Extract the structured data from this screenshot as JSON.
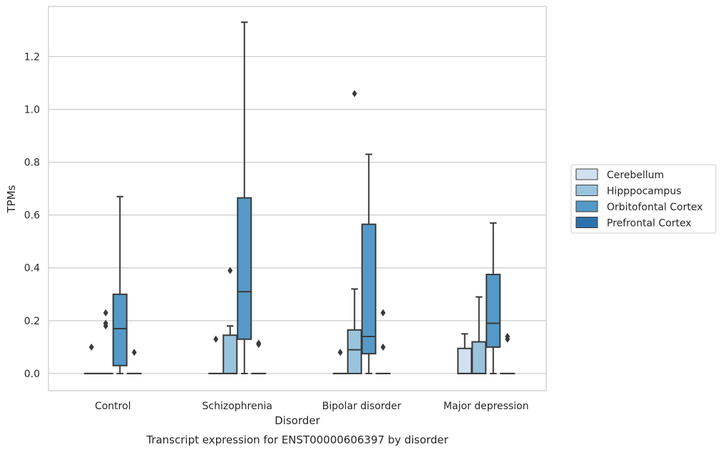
{
  "chart_data": {
    "type": "box",
    "title": "",
    "caption": "Transcript expression for ENST00000606397 by disorder",
    "xlabel": "Disorder",
    "ylabel": "TPMs",
    "ylim": [
      -0.065,
      1.39
    ],
    "yticks": [
      0.0,
      0.2,
      0.4,
      0.6,
      0.8,
      1.0,
      1.2
    ],
    "ytick_labels": [
      "0.0",
      "0.2",
      "0.4",
      "0.6",
      "0.8",
      "1.0",
      "1.2"
    ],
    "grid": "horizontal",
    "legend_position": "right",
    "categories": [
      "Control",
      "Schizophrenia",
      "Bipolar disorder",
      "Major depression"
    ],
    "series": [
      {
        "name": "Cerebellum",
        "color": "#d1e1f0",
        "boxes": [
          {
            "q1": 0.0,
            "median": 0.0,
            "q3": 0.0,
            "whisker_low": 0.0,
            "whisker_high": 0.0,
            "outliers": [
              0.1
            ]
          },
          {
            "q1": 0.0,
            "median": 0.0,
            "q3": 0.0,
            "whisker_low": 0.0,
            "whisker_high": 0.0,
            "outliers": [
              0.13
            ]
          },
          {
            "q1": 0.0,
            "median": 0.0,
            "q3": 0.0,
            "whisker_low": 0.0,
            "whisker_high": 0.0,
            "outliers": [
              0.08
            ]
          },
          {
            "q1": 0.0,
            "median": 0.0,
            "q3": 0.095,
            "whisker_low": 0.0,
            "whisker_high": 0.15,
            "outliers": []
          }
        ]
      },
      {
        "name": "Hipppocampus",
        "color": "#9ac4dd",
        "boxes": [
          {
            "q1": 0.0,
            "median": 0.0,
            "q3": 0.0,
            "whisker_low": 0.0,
            "whisker_high": 0.0,
            "outliers": [
              0.18,
              0.19,
              0.23
            ]
          },
          {
            "q1": 0.0,
            "median": 0.0,
            "q3": 0.145,
            "whisker_low": 0.0,
            "whisker_high": 0.18,
            "outliers": [
              0.39
            ]
          },
          {
            "q1": 0.0,
            "median": 0.09,
            "q3": 0.165,
            "whisker_low": 0.0,
            "whisker_high": 0.32,
            "outliers": [
              1.06
            ]
          },
          {
            "q1": 0.0,
            "median": 0.0,
            "q3": 0.12,
            "whisker_low": 0.0,
            "whisker_high": 0.29,
            "outliers": []
          }
        ]
      },
      {
        "name": "Orbitofontal Cortex",
        "color": "#5499c7",
        "boxes": [
          {
            "q1": 0.03,
            "median": 0.17,
            "q3": 0.3,
            "whisker_low": 0.0,
            "whisker_high": 0.67,
            "outliers": []
          },
          {
            "q1": 0.13,
            "median": 0.31,
            "q3": 0.665,
            "whisker_low": 0.0,
            "whisker_high": 1.33,
            "outliers": []
          },
          {
            "q1": 0.075,
            "median": 0.14,
            "q3": 0.565,
            "whisker_low": 0.0,
            "whisker_high": 0.83,
            "outliers": []
          },
          {
            "q1": 0.1,
            "median": 0.19,
            "q3": 0.375,
            "whisker_low": 0.0,
            "whisker_high": 0.57,
            "outliers": []
          }
        ]
      },
      {
        "name": "Prefrontal Cortex",
        "color": "#2c71ad",
        "boxes": [
          {
            "q1": 0.0,
            "median": 0.0,
            "q3": 0.0,
            "whisker_low": 0.0,
            "whisker_high": 0.0,
            "outliers": [
              0.08
            ]
          },
          {
            "q1": 0.0,
            "median": 0.0,
            "q3": 0.0,
            "whisker_low": 0.0,
            "whisker_high": 0.0,
            "outliers": [
              0.11,
              0.115
            ]
          },
          {
            "q1": 0.0,
            "median": 0.0,
            "q3": 0.0,
            "whisker_low": 0.0,
            "whisker_high": 0.0,
            "outliers": [
              0.1,
              0.23
            ]
          },
          {
            "q1": 0.0,
            "median": 0.0,
            "q3": 0.0,
            "whisker_low": 0.0,
            "whisker_high": 0.0,
            "outliers": [
              0.13,
              0.14
            ]
          }
        ]
      }
    ]
  }
}
